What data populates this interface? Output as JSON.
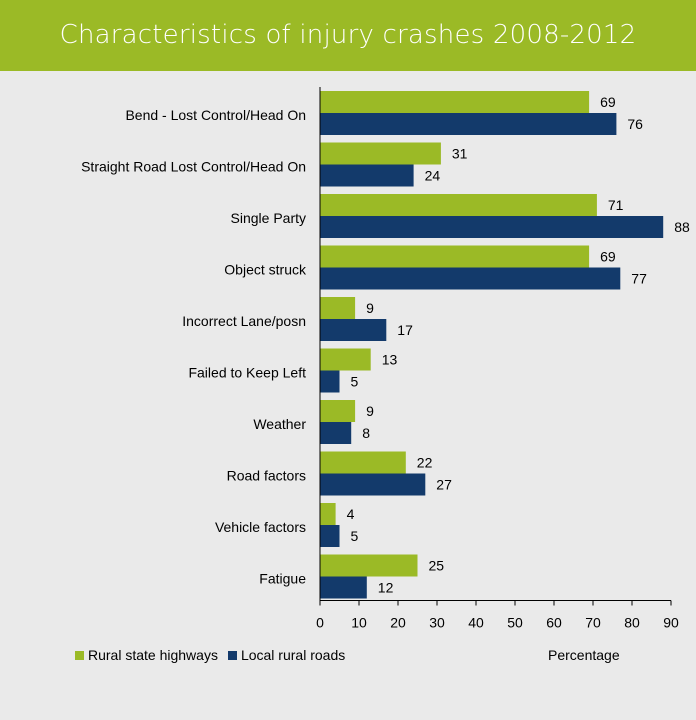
{
  "title": "Characteristics of injury crashes 2008-2012",
  "colors": {
    "title_bg": "#9bba26",
    "background": "#eaeaea",
    "rural_state_highways": "#9bba26",
    "local_rural_roads": "#133a6b"
  },
  "legend": {
    "series1_label": "Rural state highways",
    "series2_label": "Local rural roads"
  },
  "chart_data": {
    "type": "bar",
    "orientation": "horizontal",
    "title": "Characteristics of injury crashes 2008-2012",
    "xlabel": "Percentage",
    "ylabel": "",
    "xlim": [
      0,
      90
    ],
    "x_ticks": [
      "0",
      "10",
      "20",
      "30",
      "40",
      "50",
      "60",
      "70",
      "80",
      "90"
    ],
    "grid": false,
    "legend_position": "bottom-left",
    "categories": [
      "Bend - Lost Control/Head On",
      "Straight Road Lost Control/Head On",
      "Single Party",
      "Object struck",
      "Incorrect Lane/posn",
      "Failed to Keep Left",
      "Weather",
      "Road factors",
      "Vehicle factors",
      "Fatigue"
    ],
    "series": [
      {
        "name": "Rural state highways",
        "color": "#9bba26",
        "values": [
          69,
          31,
          71,
          69,
          9,
          13,
          9,
          22,
          4,
          25
        ]
      },
      {
        "name": "Local rural roads",
        "color": "#133a6b",
        "values": [
          76,
          24,
          88,
          77,
          17,
          5,
          8,
          27,
          5,
          12
        ]
      }
    ]
  }
}
